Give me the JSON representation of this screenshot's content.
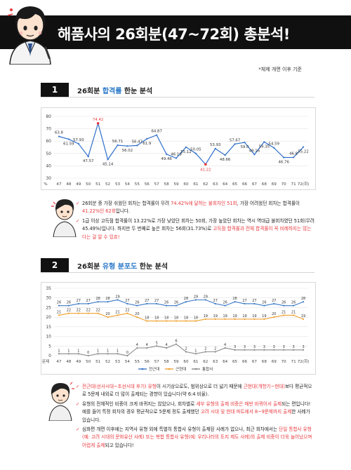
{
  "header": {
    "title": "해품사의 26회분(47~72회) 총분석!"
  },
  "note": "*체제 개편 이후 기준",
  "section1": {
    "num": "1",
    "title_pre": "26회분 ",
    "title_hl": "합격률",
    "title_post": " 한눈 분석",
    "bullets": [
      [
        {
          "t": "26회분 중 가장 쉬웠던 회차는 합격률이 무려 "
        },
        {
          "t": "74.42%에 달하는 불회차인 51회",
          "red": true
        },
        {
          "t": ", 가장 어려웠던 회차는 합격률이 "
        },
        {
          "t": "41.22%인 62회",
          "red": true
        },
        {
          "t": "입니다."
        }
      ],
      [
        {
          "t": "1급 이상 고득점 합격률이 13.22%로 가장 낮았던 회차는 50회, 가장 높았던 회차는 역시 역대급 불회차였던 51회(무려 45.49%)입니다. 하지만 두 번째로 높은 회차는 56회(31.73%)로 "
        },
        {
          "t": "고득점 합격률과 전체 합격률이 꼭 비례하지는 않는다는 걸 알 수 있죠!",
          "red": true
        }
      ]
    ]
  },
  "section2": {
    "num": "2",
    "title_pre": "26회분 ",
    "title_hl": "유형 분포도",
    "title_post": " 한눈 분석",
    "bullets": [
      [
        {
          "t": "전근대(선사시대~조선시대 후기) 유형",
          "red": true
        },
        {
          "t": "이 시기상으로도, 범위상으로 더 넓기 때문에 "
        },
        {
          "t": "근현대(개항기~현대)",
          "red": true
        },
        {
          "t": "보다 평균적으로 5문제 내외로 더 많이 출제되는 경향이 있습니다(약 6:4 비율)."
        }
      ],
      [
        {
          "t": "유형의 전체적인 비중이 크게 바뀌지는 않았으나, 회차별로 "
        },
        {
          "t": "세부 유형의 출제 비중은 매번 바뀌어서 출제",
          "red": true
        },
        {
          "t": "되는 편입니다! 예를 들어 특정 회차의 경우 평균적으로 5문제 정도 출제했던 "
        },
        {
          "t": "고려 시대 및 현대 파트에서 8~9문제까지 출제",
          "red": true
        },
        {
          "t": "한 사례가 있습니다."
        }
      ],
      [
        {
          "t": "심화편 개편 이후에는 지역사 유형 외에 특별히 통합사 유형이 출제된 사례가 없으나, 최근 회차에서는 "
        },
        {
          "t": "단일 통합사 유형(예: 고려 시대의 문화유산 사례) 또는 복합 통합사 유형(예: 우리나라의 토지 제도 사례)의 출제 비중이 더욱 늘어났으며 어렵게 출제",
          "red": true
        },
        {
          "t": "되고 있습니다!"
        }
      ]
    ]
  },
  "chart_data": [
    {
      "type": "line",
      "title": "",
      "xlabel": "회",
      "ylabel": "%",
      "x": [
        47,
        48,
        49,
        50,
        51,
        52,
        53,
        54,
        55,
        56,
        57,
        58,
        59,
        60,
        61,
        62,
        63,
        64,
        65,
        66,
        67,
        68,
        69,
        70,
        71,
        72
      ],
      "x_suffix_last": "(회)",
      "ylim": [
        30,
        80
      ],
      "yticks": [
        30,
        40,
        50,
        60,
        70,
        80
      ],
      "grid": true,
      "series": [
        {
          "color": "#2f6fca",
          "values": [
            63.8,
            61.59,
            57.93,
            47.57,
            74.42,
            45.14,
            56.71,
            56.02,
            56.47,
            61.9,
            64.87,
            49.46,
            46.19,
            55.12,
            50.05,
            41.22,
            53.93,
            48.66,
            57.67,
            59.0,
            49.16,
            59.35,
            54.59,
            46.76,
            46.8,
            55.22
          ],
          "labels": [
            "63.8",
            "61.59",
            "57.93",
            "47.57",
            "74.42",
            "45.14",
            "56.71",
            "56.02",
            "56.47",
            "61.9",
            "64.87",
            "49.46",
            "46.19",
            "55.12",
            "50.05",
            "41.22",
            "53.93",
            "48.66",
            "57.67",
            "59.0",
            "49.16",
            "59.35",
            "54.59",
            "46.76",
            "46.8",
            "55.22"
          ]
        }
      ],
      "highlight": [
        {
          "x": 51,
          "label": "74.42",
          "color": "#e8383d"
        },
        {
          "x": 62,
          "label": "41.22",
          "color": "#e8383d"
        }
      ]
    },
    {
      "type": "line",
      "title": "",
      "xlabel": "회",
      "ylabel": "문제",
      "x": [
        47,
        48,
        49,
        50,
        51,
        52,
        53,
        54,
        55,
        56,
        57,
        58,
        59,
        60,
        61,
        62,
        63,
        64,
        65,
        66,
        67,
        68,
        69,
        70,
        71,
        72
      ],
      "x_suffix_last": "(회)",
      "ylim": [
        0,
        35
      ],
      "yticks": [
        0,
        5,
        10,
        15,
        20,
        25,
        30,
        35
      ],
      "grid": true,
      "legend": "bottom",
      "series": [
        {
          "name": "전근대",
          "color": "#3a78c6",
          "values": [
            26,
            26,
            27,
            27,
            28,
            28,
            29,
            27,
            26,
            27,
            27,
            26,
            26,
            28,
            29,
            29,
            27,
            26,
            28,
            27,
            27,
            26,
            27,
            26,
            26,
            28
          ]
        },
        {
          "name": "근현대",
          "color": "#f0a030",
          "values": [
            21,
            22,
            22,
            22,
            22,
            20,
            21,
            22,
            20,
            18,
            18,
            18,
            18,
            18,
            18,
            19,
            19,
            19,
            19,
            19,
            19,
            19,
            20,
            21,
            21,
            19
          ]
        },
        {
          "name": "통합사",
          "color": "#8a8a8a",
          "values": [
            1,
            1,
            1,
            0,
            1,
            1,
            1,
            0,
            4,
            4,
            5,
            4,
            6,
            2,
            1,
            2,
            2,
            4,
            3,
            3,
            3,
            3,
            3,
            3,
            3,
            3
          ]
        }
      ]
    }
  ]
}
